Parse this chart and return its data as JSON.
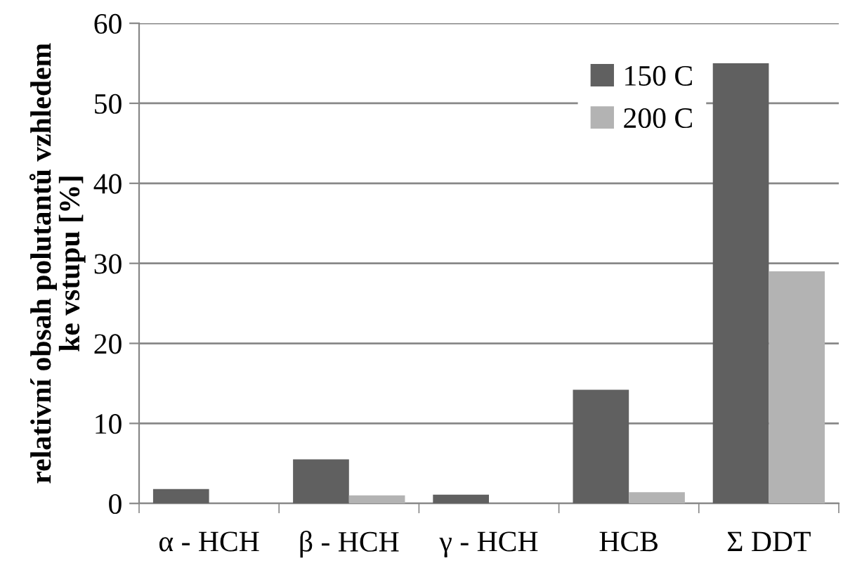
{
  "chart_data": {
    "type": "bar",
    "ylabel": "relativní obsah polutantů vzhledem\nke vstupu [%]",
    "categories": [
      "α - HCH",
      "β - HCH",
      "γ - HCH",
      "HCB",
      "Σ DDT"
    ],
    "series": [
      {
        "name": "150 C",
        "color": "#606060",
        "values": [
          1.8,
          5.5,
          1.1,
          14.2,
          55
        ]
      },
      {
        "name": "200 C",
        "color": "#b3b3b3",
        "values": [
          0,
          1.0,
          0,
          1.4,
          29
        ]
      }
    ],
    "ylim": [
      0,
      60
    ],
    "yticks": [
      0,
      10,
      20,
      30,
      40,
      50,
      60
    ],
    "grid": "y",
    "legend": "top right"
  }
}
